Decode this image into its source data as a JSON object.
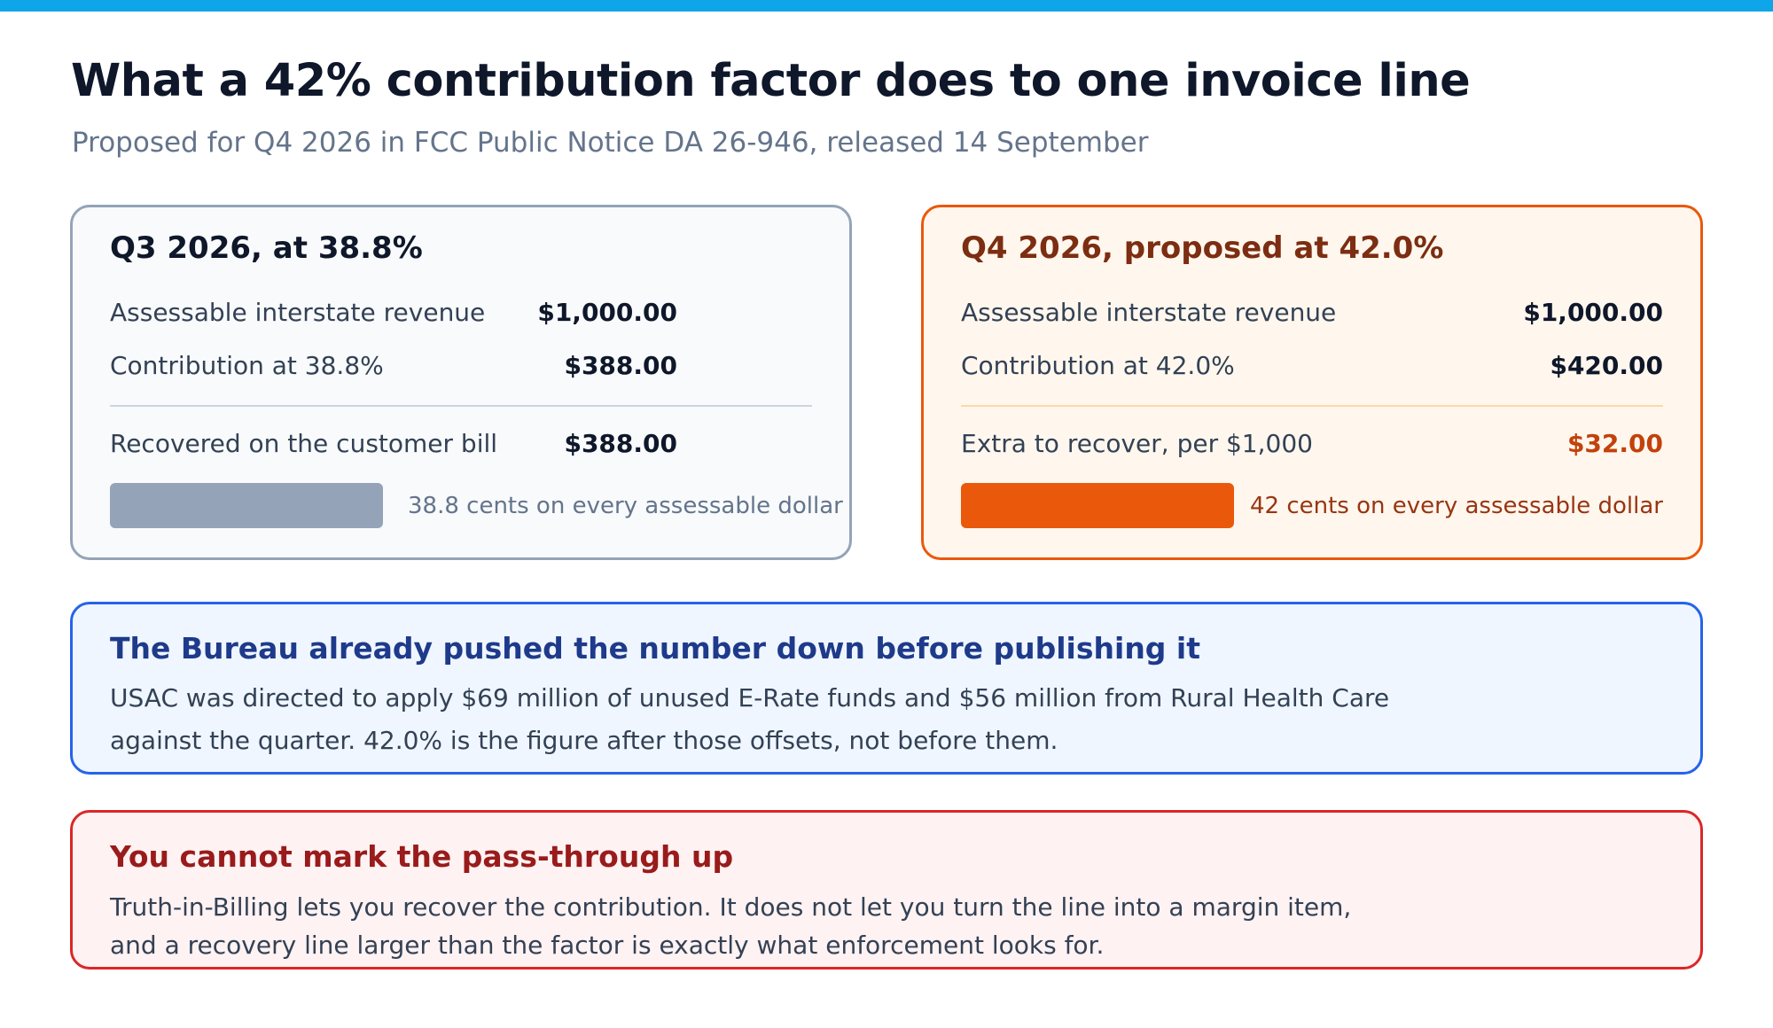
{
  "header": {
    "title": "What a 42% contribution factor does to one invoice line",
    "subtitle": "Proposed for Q4 2026 in FCC Public Notice DA 26-946, released 14 September"
  },
  "colors": {
    "topbar": "#0ea5e9",
    "q3_accent": "#94a3b8",
    "q4_accent": "#ea580c",
    "blue_note": "#2563eb",
    "red_note": "#dc2626"
  },
  "cards": {
    "q3": {
      "title": "Q3 2026, at 38.8%",
      "rows": [
        {
          "label": "Assessable interstate revenue",
          "value": "$1,000.00"
        },
        {
          "label": "Contribution at 38.8%",
          "value": "$388.00"
        },
        {
          "label": "Recovered on the customer bill",
          "value": "$388.00"
        }
      ],
      "bar_caption": "38.8 cents on every assessable dollar"
    },
    "q4": {
      "title": "Q4 2026, proposed at 42.0%",
      "rows": [
        {
          "label": "Assessable interstate revenue",
          "value": "$1,000.00"
        },
        {
          "label": "Contribution at 42.0%",
          "value": "$420.00"
        },
        {
          "label": "Extra to recover, per $1,000",
          "value": "$32.00"
        }
      ],
      "bar_caption": "42 cents on every assessable dollar"
    }
  },
  "notes": {
    "bureau": {
      "title": "The Bureau already pushed the number down before publishing it",
      "lines": [
        "USAC was directed to apply $69 million of unused E-Rate funds and $56 million from Rural Health Care",
        "against the quarter. 42.0% is the figure after those offsets, not before them."
      ]
    },
    "markup": {
      "title": "You cannot mark the pass-through up",
      "lines": [
        "Truth-in-Billing lets you recover the contribution. It does not let you turn the line into a margin item,",
        "and a recovery line larger than the factor is exactly what enforcement looks for."
      ]
    }
  }
}
